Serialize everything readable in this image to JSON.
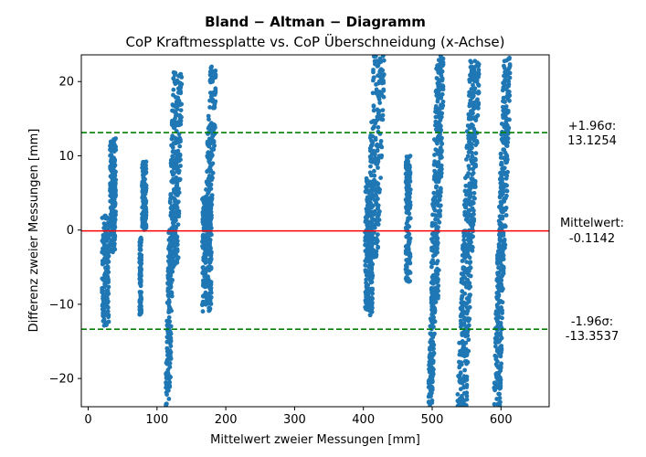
{
  "chart_data": {
    "type": "scatter",
    "title": "Bland − Altman − Diagramm",
    "subtitle": "CoP Kraftmessplatte vs. CoP Überschneidung (x-Achse)",
    "xlabel": "Mittelwert zweier Messungen [mm]",
    "ylabel": "Differenz zweier Messungen [mm]",
    "xlim": [
      -10,
      670
    ],
    "ylim": [
      -23.8,
      23.6
    ],
    "xticks": [
      0,
      100,
      200,
      300,
      400,
      500,
      600
    ],
    "yticks": [
      -20,
      -10,
      0,
      10,
      20
    ],
    "grid": false,
    "point_color": "#1f77b4",
    "mean": {
      "value": -0.1142,
      "color": "#ff0000",
      "label_lines": [
        "Mittelwert:",
        "-0.1142"
      ]
    },
    "upper_loa": {
      "value": 13.1254,
      "color": "#008000",
      "label_lines": [
        "+1.96σ:",
        "13.1254"
      ]
    },
    "lower_loa": {
      "value": -13.3537,
      "color": "#008000",
      "label_lines": [
        "-1.96σ:",
        "-13.3537"
      ]
    },
    "clusters": [
      {
        "x": [
          18,
          32
        ],
        "y": [
          -13,
          2
        ],
        "slope": 0.0,
        "count": 170
      },
      {
        "x": [
          30,
          42
        ],
        "y": [
          -3,
          12.5
        ],
        "slope": 0.0,
        "count": 200
      },
      {
        "x": [
          74,
          78
        ],
        "y": [
          -11.5,
          -1
        ],
        "slope": 0.0,
        "count": 110
      },
      {
        "x": [
          77,
          86
        ],
        "y": [
          0,
          9.5
        ],
        "slope": 0.0,
        "count": 150
      },
      {
        "x": [
          113,
          123
        ],
        "y": [
          -23.8,
          0
        ],
        "slope": 0.45,
        "count": 170
      },
      {
        "x": [
          117,
          137
        ],
        "y": [
          -5,
          21.5
        ],
        "slope": 0.45,
        "count": 260
      },
      {
        "x": [
          163,
          182
        ],
        "y": [
          -11,
          4.5
        ],
        "slope": 0.0,
        "count": 220
      },
      {
        "x": [
          170,
          185
        ],
        "y": [
          -3,
          22
        ],
        "slope": 0.9,
        "count": 200
      },
      {
        "x": [
          400,
          416
        ],
        "y": [
          -11.5,
          7
        ],
        "slope": 0.0,
        "count": 220
      },
      {
        "x": [
          405,
          430
        ],
        "y": [
          -5,
          23.5
        ],
        "slope": 0.8,
        "count": 240
      },
      {
        "x": [
          460,
          470
        ],
        "y": [
          -7,
          10
        ],
        "slope": 0.0,
        "count": 170
      },
      {
        "x": [
          495,
          505
        ],
        "y": [
          -23.8,
          -6
        ],
        "slope": 0.75,
        "count": 140
      },
      {
        "x": [
          499,
          516
        ],
        "y": [
          -10,
          23.5
        ],
        "slope": 0.6,
        "count": 300
      },
      {
        "x": [
          537,
          557
        ],
        "y": [
          -23.8,
          -2
        ],
        "slope": 0.7,
        "count": 200
      },
      {
        "x": [
          546,
          568
        ],
        "y": [
          -3,
          23
        ],
        "slope": 0.85,
        "count": 260
      },
      {
        "x": [
          590,
          604
        ],
        "y": [
          -23.8,
          -2
        ],
        "slope": 0.55,
        "count": 170
      },
      {
        "x": [
          597,
          613
        ],
        "y": [
          -4,
          23.5
        ],
        "slope": 0.7,
        "count": 240
      }
    ]
  }
}
